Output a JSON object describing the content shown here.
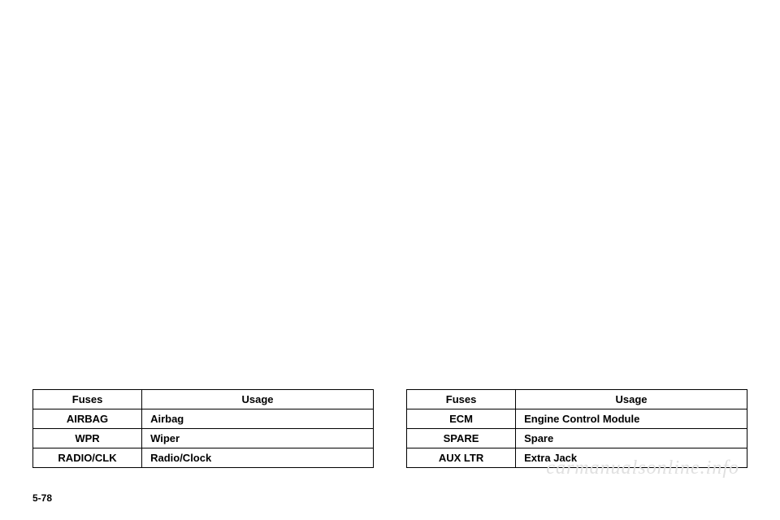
{
  "tables": {
    "left": {
      "headers": [
        "Fuses",
        "Usage"
      ],
      "rows": [
        [
          "AIRBAG",
          "Airbag"
        ],
        [
          "WPR",
          "Wiper"
        ],
        [
          "RADIO/CLK",
          "Radio/Clock"
        ]
      ]
    },
    "right": {
      "headers": [
        "Fuses",
        "Usage"
      ],
      "rows": [
        [
          "ECM",
          "Engine Control Module"
        ],
        [
          "SPARE",
          "Spare"
        ],
        [
          "AUX LTR",
          "Extra Jack"
        ]
      ]
    }
  },
  "page_number": "5-78",
  "watermark": "carmanualsonline.info",
  "styling": {
    "border_color": "#000000",
    "border_width": 1.5,
    "font_size": 13,
    "font_weight": "bold",
    "header_align": "center",
    "col1_align": "center",
    "col2_align": "left",
    "col1_width_pct": 32,
    "background_color": "#ffffff",
    "watermark_color": "#e0e0e0",
    "watermark_fontsize": 24
  }
}
